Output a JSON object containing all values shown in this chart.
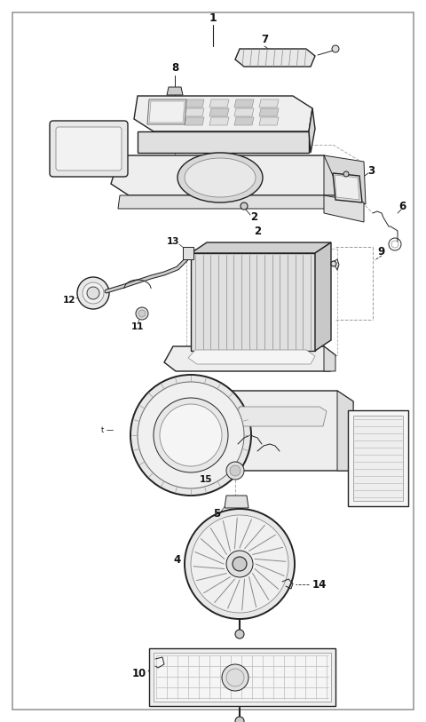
{
  "bg_color": "#ffffff",
  "border_color": "#aaaaaa",
  "line_color": "#222222",
  "label_color": "#111111",
  "fig_width": 4.8,
  "fig_height": 8.13,
  "dpi": 100,
  "label_fontsize": 8.5,
  "small_fontsize": 7.5
}
